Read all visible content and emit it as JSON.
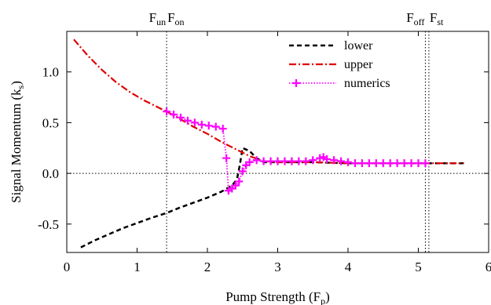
{
  "chart_data": {
    "type": "line",
    "xlabel": "Pump Strength",
    "xlabel_sub": "p",
    "xlabel_close": ")",
    "xlabel_open": "(F",
    "ylabel": "Signal Momentum",
    "ylabel_open": "(k",
    "ylabel_sub": "s",
    "ylabel_close": ")",
    "xlim": [
      0,
      6
    ],
    "ylim": [
      -0.78,
      1.4
    ],
    "x_ticks": [
      "0",
      "1",
      "2",
      "3",
      "4",
      "5",
      "6"
    ],
    "y_ticks": [
      "1.0",
      "0.5",
      "0.0",
      "-0.5"
    ],
    "y_tick_values": [
      1.0,
      0.5,
      0.0,
      -0.5
    ],
    "legend_position": "top-right",
    "reference_lines": {
      "vertical": [
        1.42,
        5.1,
        5.15
      ],
      "horizontal": [
        0.0
      ]
    },
    "top_labels": [
      {
        "main": "F",
        "sub": "un",
        "x": 1.42,
        "anchor": "end"
      },
      {
        "main": "F",
        "sub": "on",
        "x": 1.42,
        "anchor": "start"
      },
      {
        "main": "F",
        "sub": "off",
        "x": 5.1,
        "anchor": "end"
      },
      {
        "main": "F",
        "sub": "st",
        "x": 5.15,
        "anchor": "start"
      }
    ],
    "series": [
      {
        "name": "lower",
        "color": "#000000",
        "style": "dashed",
        "x": [
          0.2,
          0.4,
          0.6,
          0.8,
          1.0,
          1.2,
          1.42,
          1.6,
          1.8,
          2.0,
          2.2,
          2.35,
          2.42,
          2.46,
          2.5,
          2.6,
          2.7,
          2.8,
          3.0,
          3.5,
          4.0,
          4.5,
          5.0,
          5.5,
          5.65
        ],
        "y": [
          -0.73,
          -0.66,
          -0.6,
          -0.54,
          -0.49,
          -0.44,
          -0.39,
          -0.34,
          -0.29,
          -0.24,
          -0.18,
          -0.12,
          -0.06,
          0.08,
          0.25,
          0.22,
          0.15,
          0.11,
          0.11,
          0.11,
          0.1,
          0.1,
          0.1,
          0.1,
          0.1
        ]
      },
      {
        "name": "upper",
        "color": "#e00000",
        "style": "dashdot",
        "x": [
          0.1,
          0.3,
          0.5,
          0.7,
          0.9,
          1.1,
          1.3,
          1.42,
          1.6,
          1.8,
          2.0,
          2.2,
          2.4,
          2.6,
          2.8,
          3.0,
          3.5,
          4.0,
          4.5,
          5.0,
          5.5,
          5.65
        ],
        "y": [
          1.32,
          1.16,
          1.02,
          0.9,
          0.8,
          0.72,
          0.65,
          0.61,
          0.54,
          0.46,
          0.39,
          0.31,
          0.24,
          0.17,
          0.12,
          0.11,
          0.11,
          0.1,
          0.1,
          0.1,
          0.1,
          0.1
        ]
      },
      {
        "name": "numerics",
        "color": "#ff00ff",
        "style": "dotted-plus",
        "x": [
          1.42,
          1.52,
          1.62,
          1.72,
          1.82,
          1.92,
          2.02,
          2.12,
          2.22,
          2.27,
          2.3,
          2.35,
          2.4,
          2.45,
          2.5,
          2.55,
          2.6,
          2.7,
          2.8,
          2.9,
          3.0,
          3.1,
          3.2,
          3.3,
          3.4,
          3.5,
          3.6,
          3.65,
          3.7,
          3.8,
          3.9,
          4.0,
          4.1,
          4.2,
          4.3,
          4.4,
          4.5,
          4.6,
          4.7,
          4.8,
          4.9,
          5.0,
          5.1
        ],
        "y": [
          0.61,
          0.58,
          0.55,
          0.52,
          0.5,
          0.48,
          0.47,
          0.46,
          0.44,
          0.15,
          -0.17,
          -0.15,
          -0.12,
          -0.08,
          0.02,
          0.08,
          0.11,
          0.13,
          0.12,
          0.12,
          0.12,
          0.12,
          0.12,
          0.12,
          0.12,
          0.13,
          0.15,
          0.16,
          0.14,
          0.13,
          0.12,
          0.11,
          0.1,
          0.1,
          0.1,
          0.1,
          0.1,
          0.1,
          0.1,
          0.1,
          0.1,
          0.1,
          0.1
        ]
      }
    ]
  }
}
